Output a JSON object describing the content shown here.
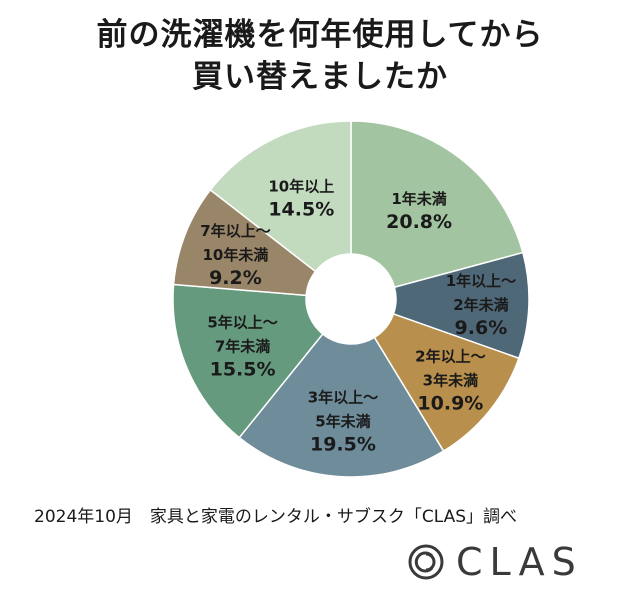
{
  "title": {
    "line1": "前の洗濯機を何年使用してから",
    "line2": "買い替えましたか"
  },
  "source": "2024年10月　家具と家電のレンタル・サブスク「CLAS」調べ",
  "brand": {
    "name": "CLAS",
    "logo_icon": "clas-logo-icon"
  },
  "chart_data": {
    "type": "pie",
    "donut": true,
    "start": "12 o'clock, clockwise",
    "slices": [
      {
        "lines": [
          "1年未満"
        ],
        "value": 20.8,
        "label": "20.8%",
        "color": "#a3c4a0"
      },
      {
        "lines": [
          "1年以上～",
          "2年未満"
        ],
        "value": 9.6,
        "label": "9.6%",
        "color": "#4f6878"
      },
      {
        "lines": [
          "2年以上～",
          "3年未満"
        ],
        "value": 10.9,
        "label": "10.9%",
        "color": "#b88f4d"
      },
      {
        "lines": [
          "3年以上～",
          "5年未満"
        ],
        "value": 19.5,
        "label": "19.5%",
        "color": "#6e8c9a"
      },
      {
        "lines": [
          "5年以上～",
          "7年未満"
        ],
        "value": 15.5,
        "label": "15.5%",
        "color": "#659a7e"
      },
      {
        "lines": [
          "7年以上～",
          "10年未満"
        ],
        "value": 9.2,
        "label": "9.2%",
        "color": "#998567"
      },
      {
        "lines": [
          "10年以上"
        ],
        "value": 14.5,
        "label": "14.5%",
        "color": "#c2dbbf"
      }
    ]
  }
}
